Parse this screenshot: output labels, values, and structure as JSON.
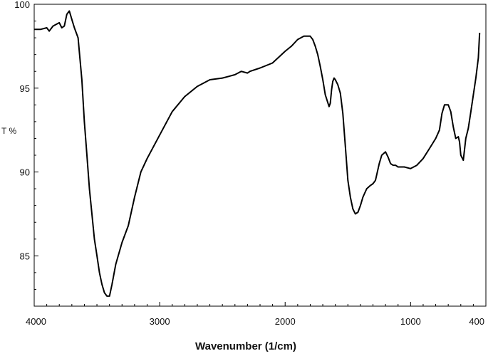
{
  "chart_data": {
    "type": "line",
    "title": "",
    "xlabel": "Wavenumber (1/cm)",
    "ylabel": "T %",
    "xlim": [
      4000,
      400
    ],
    "ylim": [
      82,
      100
    ],
    "x_reversed": true,
    "grid": false,
    "x_ticks": [
      4000,
      3000,
      2000,
      1000,
      400
    ],
    "x_tick_labels": [
      "4000",
      "3000",
      "2000",
      "1000",
      "400"
    ],
    "y_ticks": [
      85,
      90,
      95,
      100
    ],
    "y_tick_labels": [
      "85",
      "90",
      "95",
      "100"
    ],
    "line_color": "#000000",
    "series": [
      {
        "x": [
          4000,
          3950,
          3900,
          3880,
          3850,
          3800,
          3780,
          3760,
          3740,
          3720,
          3700,
          3680,
          3650,
          3620,
          3600,
          3580,
          3560,
          3540,
          3520,
          3500,
          3480,
          3460,
          3440,
          3420,
          3400,
          3380,
          3350,
          3300,
          3250,
          3200,
          3150,
          3100,
          3050,
          3000,
          2900,
          2800,
          2700,
          2600,
          2500,
          2450,
          2400,
          2350,
          2300,
          2280,
          2200,
          2100,
          2000,
          1950,
          1900,
          1850,
          1800,
          1780,
          1760,
          1740,
          1720,
          1700,
          1680,
          1650,
          1640,
          1630,
          1620,
          1610,
          1600,
          1580,
          1560,
          1540,
          1520,
          1500,
          1480,
          1460,
          1440,
          1420,
          1400,
          1380,
          1350,
          1320,
          1300,
          1280,
          1250,
          1230,
          1200,
          1180,
          1160,
          1140,
          1120,
          1100,
          1050,
          1000,
          950,
          900,
          850,
          800,
          770,
          750,
          730,
          700,
          680,
          660,
          640,
          620,
          610,
          600,
          580,
          560,
          540,
          520,
          500,
          480,
          460,
          450
        ],
        "y": [
          98.5,
          98.5,
          98.6,
          98.4,
          98.7,
          98.9,
          98.6,
          98.7,
          99.4,
          99.6,
          99.1,
          98.6,
          98.0,
          95.5,
          93.0,
          91.0,
          89.0,
          87.5,
          86.0,
          85.0,
          84.0,
          83.3,
          82.8,
          82.6,
          82.6,
          83.3,
          84.5,
          85.8,
          86.8,
          88.5,
          90.0,
          90.8,
          91.5,
          92.2,
          93.6,
          94.5,
          95.1,
          95.5,
          95.6,
          95.7,
          95.8,
          96.0,
          95.9,
          96.0,
          96.2,
          96.5,
          97.2,
          97.5,
          97.9,
          98.1,
          98.1,
          97.9,
          97.5,
          97.0,
          96.3,
          95.5,
          94.6,
          93.9,
          94.1,
          94.9,
          95.4,
          95.6,
          95.5,
          95.2,
          94.7,
          93.5,
          91.5,
          89.5,
          88.5,
          87.8,
          87.5,
          87.6,
          88.0,
          88.5,
          89.0,
          89.2,
          89.3,
          89.5,
          90.5,
          91.0,
          91.2,
          90.9,
          90.5,
          90.4,
          90.4,
          90.3,
          90.3,
          90.2,
          90.4,
          90.8,
          91.4,
          92.0,
          92.5,
          93.5,
          94.0,
          94.0,
          93.6,
          92.7,
          92.0,
          92.1,
          91.8,
          91.0,
          90.7,
          92.0,
          92.6,
          93.6,
          94.6,
          95.6,
          96.8,
          98.3
        ]
      }
    ]
  }
}
